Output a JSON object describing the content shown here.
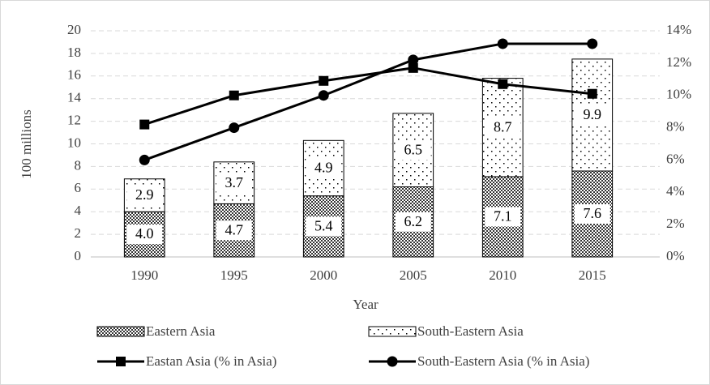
{
  "chart_data": {
    "type": "combo",
    "categories": [
      "1990",
      "1995",
      "2000",
      "2005",
      "2010",
      "2015"
    ],
    "x_label": "Year",
    "y_label": "100 millions",
    "ylim": [
      0,
      20
    ],
    "yticks": [
      0,
      2,
      4,
      6,
      8,
      10,
      12,
      14,
      16,
      18,
      20
    ],
    "y2lim": [
      0,
      14
    ],
    "y2ticks": [
      {
        "value": 0,
        "label": "0%"
      },
      {
        "value": 2,
        "label": "2%"
      },
      {
        "value": 4,
        "label": "4%"
      },
      {
        "value": 6,
        "label": "6%"
      },
      {
        "value": 8,
        "label": "8%"
      },
      {
        "value": 10,
        "label": "10%"
      },
      {
        "value": 12,
        "label": "12%"
      },
      {
        "value": 14,
        "label": "14%"
      }
    ],
    "grid": true,
    "series": [
      {
        "name": "Eastern Asia",
        "type": "bar",
        "pattern": "crosshatch",
        "color": "#000000",
        "values": [
          4.0,
          4.7,
          5.4,
          6.2,
          7.1,
          7.6
        ],
        "value_labels": [
          "4.0",
          "4.7",
          "5.4",
          "6.2",
          "7.1",
          "7.6"
        ]
      },
      {
        "name": "South-Eastern Asia",
        "type": "bar",
        "pattern": "dots",
        "color": "#000000",
        "values": [
          2.9,
          3.7,
          4.9,
          6.5,
          8.7,
          9.9
        ],
        "value_labels": [
          "2.9",
          "3.7",
          "4.9",
          "6.5",
          "8.7",
          "9.9"
        ]
      },
      {
        "name": "Eastan Asia (% in Asia)",
        "type": "line",
        "marker": "square",
        "color": "#000000",
        "axis": "y2",
        "values": [
          8.2,
          10.0,
          10.9,
          11.7,
          10.7,
          10.1
        ]
      },
      {
        "name": "South-Eastern Asia (% in Asia)",
        "type": "line",
        "marker": "circle",
        "color": "#000000",
        "axis": "y2",
        "values": [
          6.0,
          8.0,
          10.0,
          12.2,
          13.2,
          13.2
        ]
      }
    ]
  }
}
